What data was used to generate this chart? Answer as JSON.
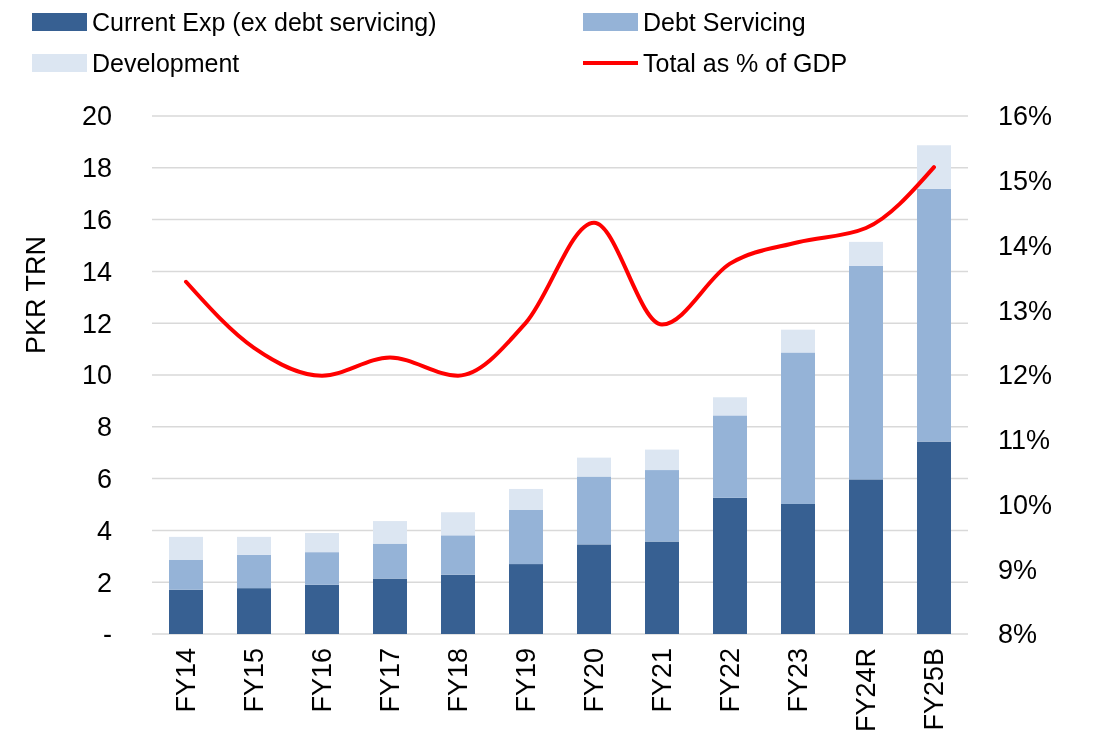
{
  "chart_data": {
    "type": "bar",
    "stacked": true,
    "ylabel": "PKR TRN",
    "categories": [
      "FY14",
      "FY15",
      "FY16",
      "FY17",
      "FY18",
      "FY19",
      "FY20",
      "FY21",
      "FY22",
      "FY23",
      "FY24R",
      "FY25B"
    ],
    "series": [
      {
        "name": "Current Exp (ex debt servicing)",
        "color": "#376092",
        "values": [
          1.71,
          1.77,
          1.9,
          2.14,
          2.29,
          2.7,
          3.46,
          3.57,
          5.26,
          5.02,
          5.97,
          7.43
        ]
      },
      {
        "name": "Debt Servicing",
        "color": "#95b3d7",
        "values": [
          1.16,
          1.29,
          1.26,
          1.35,
          1.52,
          2.1,
          2.62,
          2.76,
          3.18,
          5.85,
          8.25,
          9.76
        ]
      },
      {
        "name": "Development",
        "color": "#dce6f2",
        "values": [
          0.88,
          0.69,
          0.74,
          0.87,
          0.89,
          0.8,
          0.73,
          0.79,
          0.7,
          0.88,
          0.92,
          1.68
        ]
      },
      {
        "name": "Total as % of GDP",
        "type": "line",
        "axis": "y2",
        "color": "#ff0000",
        "values": [
          13.44,
          12.42,
          11.99,
          12.27,
          11.99,
          12.81,
          14.35,
          12.78,
          13.72,
          14.05,
          14.27,
          15.21
        ]
      }
    ],
    "ylim": [
      0,
      20
    ],
    "yticks": [
      {
        "value": 0,
        "label": "-"
      },
      2,
      4,
      6,
      8,
      10,
      12,
      14,
      16,
      18,
      20
    ],
    "y2lim": [
      8,
      16
    ],
    "y2ticks": [
      {
        "value": 8,
        "label": "8%"
      },
      {
        "value": 9,
        "label": "9%"
      },
      {
        "value": 10,
        "label": "10%"
      },
      {
        "value": 11,
        "label": "11%"
      },
      {
        "value": 12,
        "label": "12%"
      },
      {
        "value": 13,
        "label": "13%"
      },
      {
        "value": 14,
        "label": "14%"
      },
      {
        "value": 15,
        "label": "15%"
      },
      {
        "value": 16,
        "label": "16%"
      }
    ],
    "grid": "y",
    "legend": "top"
  }
}
